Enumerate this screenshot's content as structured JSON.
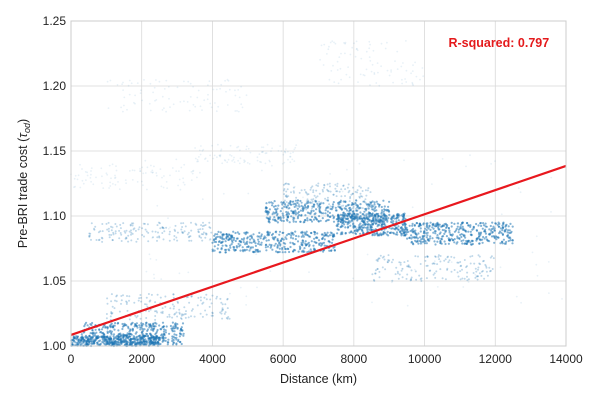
{
  "chart_data": {
    "type": "scatter",
    "title": "",
    "xlabel": "Distance (km)",
    "ylabel": "Pre-BRI trade cost (τ_od)",
    "ylabel_parts": {
      "main": "Pre-BRI trade cost (",
      "sym": "τ",
      "sub": "od",
      "close": ")"
    },
    "xlim": [
      0,
      14000
    ],
    "ylim": [
      1.0,
      1.25
    ],
    "x_ticks": [
      0,
      2000,
      4000,
      6000,
      8000,
      10000,
      12000,
      14000
    ],
    "x_tick_labels": [
      "0",
      "2000",
      "4000",
      "6000",
      "8000",
      "10000",
      "12000",
      "14000"
    ],
    "y_ticks": [
      1.0,
      1.05,
      1.1,
      1.15,
      1.2,
      1.25
    ],
    "y_tick_labels": [
      "1.00",
      "1.05",
      "1.10",
      "1.15",
      "1.20",
      "1.25"
    ],
    "grid": true,
    "annotation": {
      "text": "R-squared: 0.797",
      "color": "#e41a1c",
      "x": 12100,
      "y": 1.233
    },
    "fit_line": {
      "color": "#e8181e",
      "points": [
        [
          0,
          1.0085
        ],
        [
          14000,
          1.1385
        ]
      ]
    },
    "point_color": "#1f77b4",
    "point_clusters": [
      {
        "x": [
          300,
          3200
        ],
        "y": [
          1.001,
          1.018
        ],
        "density": "dense"
      },
      {
        "x": [
          0,
          2500
        ],
        "y": [
          1.0,
          1.008
        ],
        "density": "dense"
      },
      {
        "x": [
          4000,
          7500
        ],
        "y": [
          1.072,
          1.088
        ],
        "density": "dense"
      },
      {
        "x": [
          7500,
          9500
        ],
        "y": [
          1.085,
          1.102
        ],
        "density": "dense"
      },
      {
        "x": [
          9500,
          12500
        ],
        "y": [
          1.078,
          1.095
        ],
        "density": "dense"
      },
      {
        "x": [
          5500,
          9000
        ],
        "y": [
          1.095,
          1.112
        ],
        "density": "dense"
      },
      {
        "x": [
          8500,
          12000
        ],
        "y": [
          1.05,
          1.07
        ],
        "density": "medium"
      },
      {
        "x": [
          6000,
          8500
        ],
        "y": [
          1.105,
          1.125
        ],
        "density": "medium"
      },
      {
        "x": [
          1000,
          4500
        ],
        "y": [
          1.02,
          1.04
        ],
        "density": "medium"
      },
      {
        "x": [
          500,
          4000
        ],
        "y": [
          1.08,
          1.095
        ],
        "density": "medium"
      },
      {
        "x": [
          2000,
          14000
        ],
        "y": [
          1.03,
          1.15
        ],
        "density": "sparse"
      },
      {
        "x": [
          1000,
          5000
        ],
        "y": [
          1.18,
          1.205
        ],
        "density": "sparse"
      },
      {
        "x": [
          7000,
          10000
        ],
        "y": [
          1.2,
          1.235
        ],
        "density": "sparse"
      },
      {
        "x": [
          0,
          3500
        ],
        "y": [
          1.12,
          1.14
        ],
        "density": "sparse"
      },
      {
        "x": [
          3500,
          6500
        ],
        "y": [
          1.14,
          1.155
        ],
        "density": "sparse"
      }
    ]
  }
}
